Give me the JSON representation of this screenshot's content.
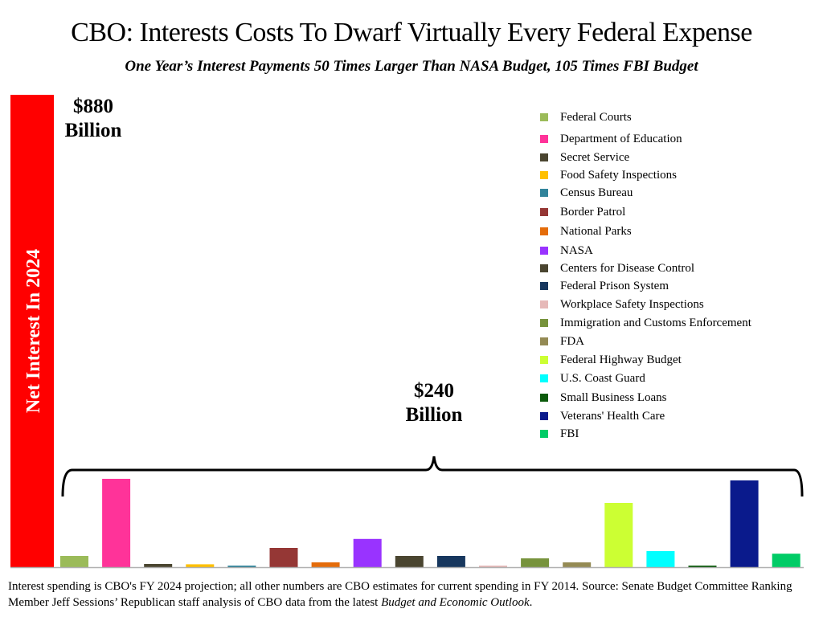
{
  "chart_data": {
    "type": "bar",
    "title": "CBO: Interests Costs To Dwarf Virtually Every Federal Expense",
    "subtitle": "One Year’s Interest Payments 50 Times Larger Than NASA Budget, 105 Times FBI Budget",
    "units": "Billions of dollars",
    "xlabel": "",
    "ylabel": "",
    "grid": false,
    "legend_position": "top-right",
    "highlight": {
      "name": "Net Interest In 2024",
      "value": 880,
      "label_line1": "$880",
      "label_line2": "Billion",
      "color": "#ff0000"
    },
    "bracket_label": {
      "line1": "$240",
      "line2": "Billion"
    },
    "categories": [
      "Federal Courts",
      "Department of Education",
      "Secret Service",
      "Food Safety Inspections",
      "Census Bureau",
      "Border Patrol",
      "National Parks",
      "NASA",
      "Centers for Disease Control",
      "Federal Prison System",
      "Workplace Safety Inspections",
      "Immigration and Customs Enforcement",
      "FDA",
      "Federal Highway Budget",
      "U.S. Coast Guard",
      "Small Business Loans",
      "Veterans' Health Care",
      "FBI"
    ],
    "values": [
      7,
      55,
      2,
      1.8,
      1,
      12,
      3,
      17.6,
      7,
      7,
      1,
      5.5,
      3,
      40,
      10,
      1,
      54,
      8.4
    ],
    "colors": [
      "#9bbb59",
      "#ff3399",
      "#4a4530",
      "#ffc000",
      "#31849b",
      "#953735",
      "#e46c0a",
      "#9933ff",
      "#4a4530",
      "#17375e",
      "#e6b9b8",
      "#77933c",
      "#948a54",
      "#ccff33",
      "#00ffff",
      "#0b5a0b",
      "#0a1a8c",
      "#00cc66"
    ]
  },
  "footnote": {
    "text": "Interest spending is CBO's FY 2024 projection; all other numbers are CBO estimates for current spending in FY 2014. Source: Senate Budget Committee Ranking Member Jeff Sessions’ Republican staff analysis of CBO data from the latest ",
    "italic": "Budget and Economic Outlook",
    "end": "."
  }
}
